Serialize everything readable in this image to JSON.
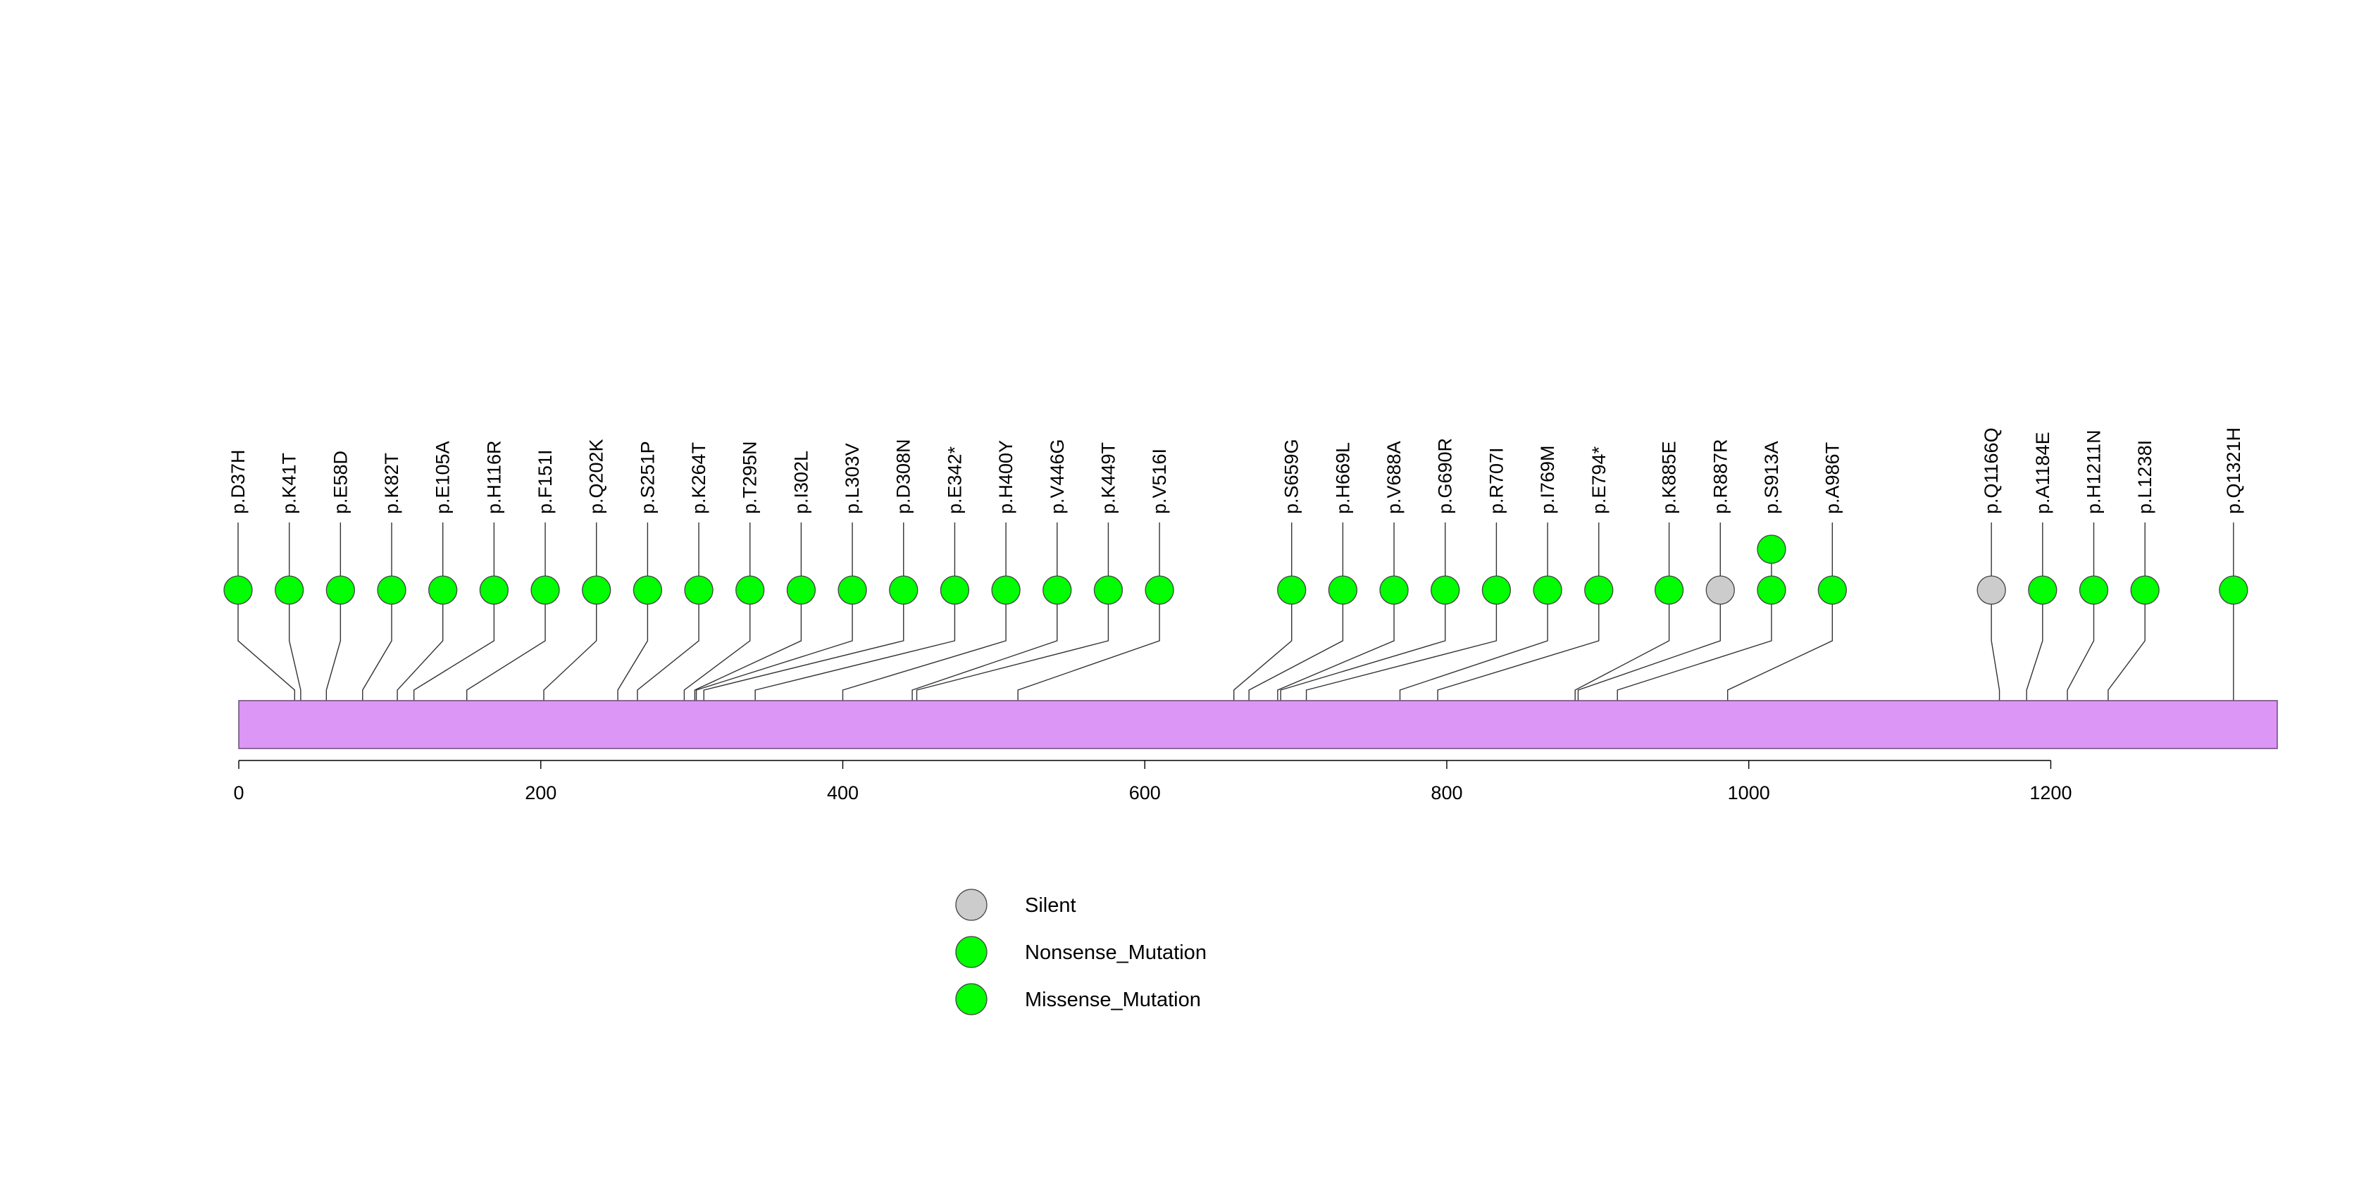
{
  "chart_data": {
    "type": "lollipop",
    "protein_length": 1350,
    "x_ticks": [
      0,
      200,
      400,
      600,
      800,
      1000,
      1200
    ],
    "tick_labels": [
      "0",
      "200",
      "400",
      "600",
      "800",
      "1000",
      "1200"
    ],
    "domain_color": "#dc96f5",
    "colors": {
      "Silent": "#cccccc",
      "Nonsense_Mutation": "#00ff00",
      "Missense_Mutation": "#00ff00"
    },
    "legend": [
      {
        "name": "Silent",
        "color": "#cccccc"
      },
      {
        "name": "Nonsense_Mutation",
        "color": "#00ff00"
      },
      {
        "name": "Missense_Mutation",
        "color": "#00ff00"
      }
    ],
    "mutations": [
      {
        "label": "p.D37H",
        "pos": 37,
        "types": [
          "Missense_Mutation"
        ]
      },
      {
        "label": "p.K41T",
        "pos": 41,
        "types": [
          "Missense_Mutation"
        ]
      },
      {
        "label": "p.E58D",
        "pos": 58,
        "types": [
          "Missense_Mutation"
        ]
      },
      {
        "label": "p.K82T",
        "pos": 82,
        "types": [
          "Missense_Mutation"
        ]
      },
      {
        "label": "p.E105A",
        "pos": 105,
        "types": [
          "Missense_Mutation"
        ]
      },
      {
        "label": "p.H116R",
        "pos": 116,
        "types": [
          "Missense_Mutation"
        ]
      },
      {
        "label": "p.F151I",
        "pos": 151,
        "types": [
          "Missense_Mutation"
        ]
      },
      {
        "label": "p.Q202K",
        "pos": 202,
        "types": [
          "Missense_Mutation"
        ]
      },
      {
        "label": "p.S251P",
        "pos": 251,
        "types": [
          "Missense_Mutation"
        ]
      },
      {
        "label": "p.K264T",
        "pos": 264,
        "types": [
          "Missense_Mutation"
        ]
      },
      {
        "label": "p.T295N",
        "pos": 295,
        "types": [
          "Missense_Mutation"
        ]
      },
      {
        "label": "p.I302L",
        "pos": 302,
        "types": [
          "Missense_Mutation"
        ]
      },
      {
        "label": "p.L303V",
        "pos": 303,
        "types": [
          "Missense_Mutation"
        ]
      },
      {
        "label": "p.D308N",
        "pos": 308,
        "types": [
          "Missense_Mutation"
        ]
      },
      {
        "label": "p.E342*",
        "pos": 342,
        "types": [
          "Nonsense_Mutation"
        ]
      },
      {
        "label": "p.H400Y",
        "pos": 400,
        "types": [
          "Missense_Mutation"
        ]
      },
      {
        "label": "p.V446G",
        "pos": 446,
        "types": [
          "Missense_Mutation"
        ]
      },
      {
        "label": "p.K449T",
        "pos": 449,
        "types": [
          "Missense_Mutation"
        ]
      },
      {
        "label": "p.V516I",
        "pos": 516,
        "types": [
          "Missense_Mutation"
        ]
      },
      {
        "label": "p.S659G",
        "pos": 659,
        "types": [
          "Missense_Mutation"
        ]
      },
      {
        "label": "p.H669L",
        "pos": 669,
        "types": [
          "Missense_Mutation"
        ]
      },
      {
        "label": "p.V688A",
        "pos": 688,
        "types": [
          "Missense_Mutation"
        ]
      },
      {
        "label": "p.G690R",
        "pos": 690,
        "types": [
          "Missense_Mutation"
        ]
      },
      {
        "label": "p.R707I",
        "pos": 707,
        "types": [
          "Missense_Mutation"
        ]
      },
      {
        "label": "p.I769M",
        "pos": 769,
        "types": [
          "Missense_Mutation"
        ]
      },
      {
        "label": "p.E794*",
        "pos": 794,
        "types": [
          "Nonsense_Mutation"
        ]
      },
      {
        "label": "p.K885E",
        "pos": 885,
        "types": [
          "Missense_Mutation"
        ]
      },
      {
        "label": "p.R887R",
        "pos": 887,
        "types": [
          "Silent"
        ]
      },
      {
        "label": "p.S913A",
        "pos": 913,
        "types": [
          "Missense_Mutation",
          "Missense_Mutation"
        ]
      },
      {
        "label": "p.A986T",
        "pos": 986,
        "types": [
          "Missense_Mutation"
        ]
      },
      {
        "label": "p.Q1166Q",
        "pos": 1166,
        "types": [
          "Silent"
        ]
      },
      {
        "label": "p.A1184E",
        "pos": 1184,
        "types": [
          "Missense_Mutation"
        ]
      },
      {
        "label": "p.H1211N",
        "pos": 1211,
        "types": [
          "Missense_Mutation"
        ]
      },
      {
        "label": "p.L1238I",
        "pos": 1238,
        "types": [
          "Missense_Mutation"
        ]
      },
      {
        "label": "p.Q1321H",
        "pos": 1321,
        "types": [
          "Missense_Mutation"
        ]
      }
    ]
  }
}
